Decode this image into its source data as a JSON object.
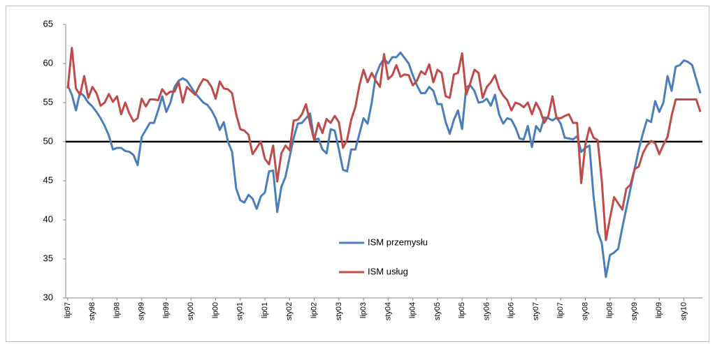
{
  "chart_data": {
    "type": "line",
    "categories": [
      "lip97",
      null,
      null,
      null,
      null,
      null,
      "sty98",
      null,
      null,
      null,
      null,
      null,
      "lip98",
      null,
      null,
      null,
      null,
      null,
      "sty99",
      null,
      null,
      null,
      null,
      null,
      "lip99",
      null,
      null,
      null,
      null,
      null,
      "sty00",
      null,
      null,
      null,
      null,
      null,
      "lip00",
      null,
      null,
      null,
      null,
      null,
      "sty01",
      null,
      null,
      null,
      null,
      null,
      "lip01",
      null,
      null,
      null,
      null,
      null,
      "sty02",
      null,
      null,
      null,
      null,
      null,
      "lip02",
      null,
      null,
      null,
      null,
      null,
      "sty03",
      null,
      null,
      null,
      null,
      null,
      "lip03",
      null,
      null,
      null,
      null,
      null,
      "sty04",
      null,
      null,
      null,
      null,
      null,
      "lip04",
      null,
      null,
      null,
      null,
      null,
      "sty05",
      null,
      null,
      null,
      null,
      null,
      "lip05",
      null,
      null,
      null,
      null,
      null,
      "sty06",
      null,
      null,
      null,
      null,
      null,
      "lip06",
      null,
      null,
      null,
      null,
      null,
      "sty07",
      null,
      null,
      null,
      null,
      null,
      "lip07",
      null,
      null,
      null,
      null,
      null,
      "sty08",
      null,
      null,
      null,
      null,
      null,
      "lip08",
      null,
      null,
      null,
      null,
      null,
      "sty09",
      null,
      null,
      null,
      null,
      null,
      "lip09",
      null,
      null,
      null,
      null,
      null,
      "sty10",
      null,
      null,
      null,
      null
    ],
    "series": [
      {
        "name": "ISM przemysłu",
        "color": "#4a7ebb",
        "values": [
          57.2,
          56.0,
          54.0,
          56.3,
          55.8,
          55.0,
          54.5,
          53.8,
          53.0,
          52.0,
          50.8,
          49.0,
          49.2,
          49.2,
          48.8,
          48.7,
          48.3,
          47.0,
          50.6,
          51.5,
          52.4,
          52.4,
          54.0,
          55.8,
          53.8,
          55.0,
          57.0,
          57.8,
          58.1,
          57.8,
          57.0,
          56.2,
          55.6,
          55.0,
          54.7,
          54.0,
          53.0,
          51.5,
          52.5,
          50.0,
          48.7,
          44.0,
          42.5,
          42.2,
          43.2,
          42.7,
          41.4,
          43.0,
          43.5,
          46.2,
          46.3,
          41.0,
          44.2,
          45.5,
          48.0,
          50.5,
          52.3,
          52.4,
          53.0,
          53.6,
          50.2,
          50.4,
          49.0,
          48.5,
          51.6,
          51.4,
          49.0,
          46.4,
          46.2,
          49.0,
          49.0,
          51.0,
          53.0,
          52.3,
          55.0,
          58.5,
          59.8,
          60.6,
          60.0,
          60.8,
          60.8,
          61.4,
          60.7,
          60.0,
          58.5,
          57.2,
          56.2,
          56.2,
          57.0,
          56.5,
          54.8,
          54.8,
          52.5,
          51.0,
          52.8,
          54.0,
          51.6,
          57.0,
          57.2,
          56.5,
          55.0,
          55.1,
          55.5,
          54.6,
          56.0,
          53.5,
          52.3,
          53.0,
          52.8,
          51.8,
          50.4,
          50.3,
          52.0,
          49.3,
          52.0,
          51.3,
          53.1,
          53.0,
          52.7,
          53.1,
          52.3,
          50.5,
          50.4,
          50.3,
          50.7,
          48.7,
          49.2,
          49.5,
          43.0,
          38.5,
          37.0,
          32.7,
          35.5,
          35.8,
          36.3,
          39.0,
          41.5,
          44.0,
          46.5,
          49.0,
          51.0,
          52.8,
          52.5,
          55.2,
          53.8,
          55.0,
          58.4,
          56.5,
          59.6,
          59.8,
          60.4,
          60.2,
          59.8,
          58.0,
          56.2
        ]
      },
      {
        "name": "ISM usług",
        "color": "#be4b48",
        "values": [
          56.8,
          62.0,
          56.8,
          56.0,
          58.4,
          55.6,
          57.0,
          56.2,
          54.6,
          55.0,
          56.1,
          55.1,
          55.8,
          53.5,
          55.0,
          53.6,
          52.6,
          53.0,
          55.5,
          54.5,
          55.4,
          55.4,
          55.3,
          56.7,
          56.0,
          56.4,
          56.4,
          57.6,
          55.0,
          57.0,
          56.5,
          56.0,
          57.1,
          58.0,
          57.8,
          57.0,
          55.5,
          57.7,
          56.8,
          56.7,
          56.2,
          53.5,
          51.6,
          51.4,
          50.9,
          48.4,
          49.2,
          50.0,
          47.8,
          47.1,
          49.5,
          44.9,
          48.5,
          49.5,
          48.9,
          52.7,
          52.8,
          53.5,
          54.8,
          52.3,
          50.2,
          52.4,
          51.1,
          52.9,
          52.4,
          53.3,
          52.5,
          49.2,
          50.2,
          52.8,
          54.4,
          57.2,
          59.2,
          57.6,
          58.8,
          57.8,
          57.0,
          61.2,
          58.0,
          58.5,
          59.8,
          58.3,
          58.6,
          58.5,
          57.2,
          57.8,
          59.0,
          58.6,
          59.9,
          57.6,
          59.2,
          58.8,
          55.8,
          55.6,
          58.6,
          58.8,
          61.3,
          56.0,
          57.5,
          59.2,
          58.8,
          55.6,
          57.0,
          57.6,
          58.5,
          56.8,
          55.9,
          55.3,
          54.0,
          55.0,
          54.8,
          54.4,
          55.0,
          53.5,
          55.0,
          54.0,
          52.4,
          53.3,
          55.8,
          53.0,
          53.0,
          53.3,
          53.5,
          52.4,
          52.4,
          44.7,
          49.6,
          51.8,
          50.5,
          50.2,
          45.0,
          37.4,
          40.2,
          42.9,
          42.1,
          41.3,
          44.0,
          44.5,
          46.5,
          46.8,
          48.5,
          49.5,
          50.1,
          49.8,
          48.4,
          49.6,
          50.6,
          53.3,
          55.4,
          55.4,
          55.4,
          55.4,
          55.4,
          55.4,
          53.8
        ]
      }
    ],
    "reference_line": 50,
    "ylim": [
      30,
      65
    ],
    "yticks": [
      30,
      35,
      40,
      45,
      50,
      55,
      60,
      65
    ],
    "grid": false
  }
}
